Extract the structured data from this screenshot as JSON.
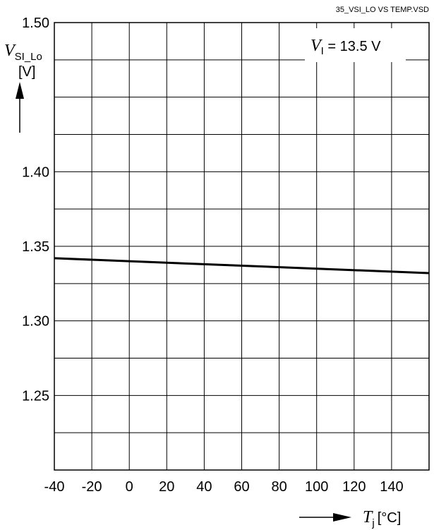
{
  "source_label": "35_VSI_LO VS TEMP.VSD",
  "chart_data": {
    "type": "line",
    "title": "",
    "xlabel": {
      "symbol": "T",
      "subscript": "j",
      "unit": "[°C]"
    },
    "ylabel": {
      "symbol": "V",
      "subscript": "SI_Lo",
      "unit": "[V]"
    },
    "xlim": [
      -40,
      160
    ],
    "ylim": [
      1.2,
      1.5
    ],
    "x_ticks": [
      -40,
      -20,
      0,
      20,
      40,
      60,
      80,
      100,
      120,
      140
    ],
    "x_tick_labels": [
      "-40",
      "-20",
      "0",
      "20",
      "40",
      "60",
      "80",
      "100",
      "120",
      "140"
    ],
    "y_ticks": [
      1.25,
      1.3,
      1.35,
      1.4,
      1.5
    ],
    "y_tick_labels": [
      "1.25",
      "1.30",
      "1.35",
      "1.40",
      "1.50"
    ],
    "x_grid_step": 20,
    "y_grid_step": 0.025,
    "grid": true,
    "series": [
      {
        "x": [
          -40,
          160
        ],
        "y": [
          1.342,
          1.332
        ]
      }
    ],
    "annotation": {
      "symbol": "V",
      "subscript": "I",
      "text": " = 13.5 V",
      "placement": "top-right"
    }
  }
}
